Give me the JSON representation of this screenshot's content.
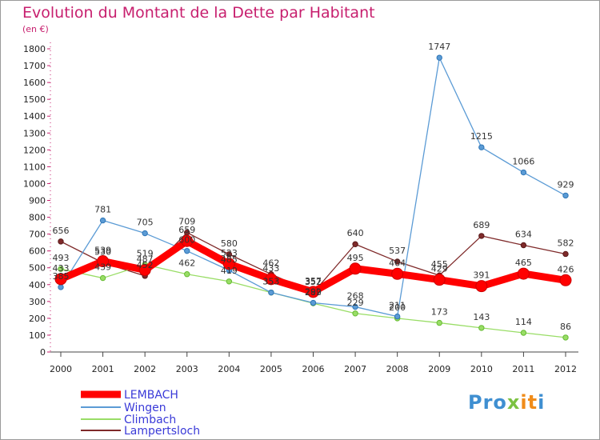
{
  "chart_data": {
    "type": "line",
    "title": "Evolution du Montant de la Dette par Habitant",
    "subtitle": "(en €)",
    "x": [
      "2000",
      "2001",
      "2002",
      "2003",
      "2004",
      "2005",
      "2006",
      "2007",
      "2008",
      "2009",
      "2010",
      "2011",
      "2012"
    ],
    "ylim": [
      0,
      1800
    ],
    "yticks": [
      0,
      100,
      200,
      300,
      400,
      500,
      600,
      700,
      800,
      900,
      1000,
      1100,
      1200,
      1300,
      1400,
      1500,
      1600,
      1700,
      1800
    ],
    "grid": false,
    "legend_placement": "bottom-left",
    "series": [
      {
        "name": "LEMBACH",
        "color": "#ff0000",
        "values": [
          433,
          539,
          487,
          659,
          523,
          433,
          357,
          495,
          464,
          429,
          391,
          465,
          426
        ]
      },
      {
        "name": "Wingen",
        "color": "#5b9bd5",
        "values": [
          385,
          781,
          705,
          600,
          485,
          353,
          292,
          268,
          211,
          1747,
          1215,
          1066,
          929
        ]
      },
      {
        "name": "Climbach",
        "color": "#99dd66",
        "values": [
          493,
          439,
          519,
          462,
          419,
          353,
          289,
          229,
          200,
          173,
          143,
          114,
          86
        ]
      },
      {
        "name": "Lampertsloch",
        "color": "#7f2a2a",
        "values": [
          656,
          530,
          452,
          709,
          580,
          462,
          352,
          640,
          537,
          455,
          689,
          634,
          582
        ]
      }
    ]
  },
  "logo": {
    "text": "Proxiti",
    "parts": [
      "Pro",
      "x",
      "it",
      "i"
    ]
  }
}
